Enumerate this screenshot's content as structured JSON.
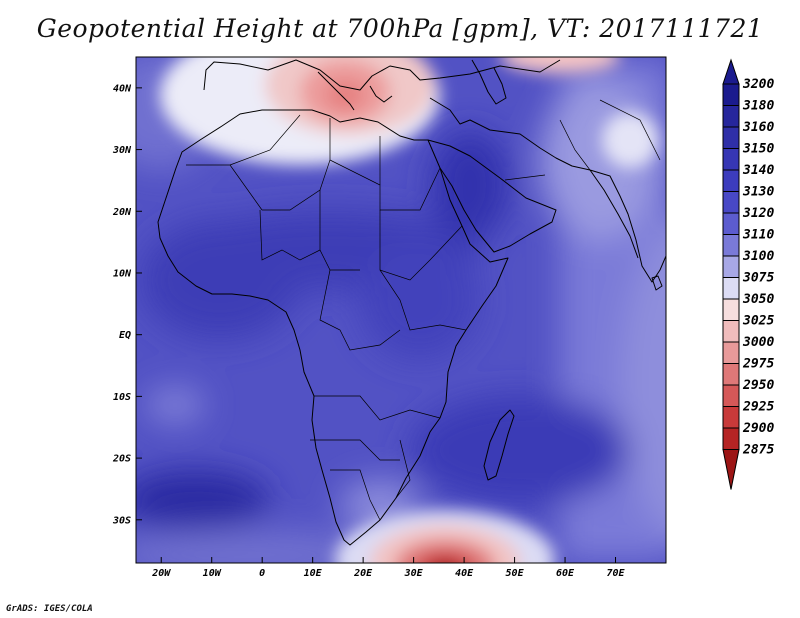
{
  "title": "Geopotential Height at 700hPa [gpm], VT: 2017111721",
  "footer": "GrADS: IGES/COLA",
  "map": {
    "region": "Africa",
    "lon_range": [
      -25,
      80
    ],
    "lat_range": [
      -37,
      45
    ],
    "x_tick_labels": [
      "20W",
      "10W",
      "0",
      "10E",
      "20E",
      "30E",
      "40E",
      "50E",
      "60E",
      "70E"
    ],
    "y_tick_labels": [
      "40N",
      "30N",
      "20N",
      "10N",
      "EQ",
      "10S",
      "20S",
      "30S"
    ]
  },
  "legend": {
    "levels": [
      "3200",
      "3180",
      "3160",
      "3150",
      "3140",
      "3130",
      "3120",
      "3110",
      "3100",
      "3075",
      "3050",
      "3025",
      "3000",
      "2975",
      "2950",
      "2925",
      "2900",
      "2875"
    ],
    "colors": [
      "#1b1b8e",
      "#26269c",
      "#2f2fa8",
      "#3636b4",
      "#3c3cbd",
      "#4848c6",
      "#5c5ccf",
      "#7a7ad8",
      "#a8a8e6",
      "#dcdcf4",
      "#f6dede",
      "#f0bcbc",
      "#e89a9a",
      "#df7878",
      "#d55858",
      "#c83a3a",
      "#b52424",
      "#9c1515"
    ]
  },
  "chart_data": {
    "type": "heatmap",
    "variable": "Geopotential Height at 700hPa [gpm]",
    "valid_time": "2017111721",
    "color_levels": [
      2875,
      2900,
      2925,
      2950,
      2975,
      3000,
      3025,
      3050,
      3075,
      3100,
      3110,
      3120,
      3130,
      3140,
      3150,
      3160,
      3180,
      3200
    ],
    "features": [
      {
        "feature": "low",
        "location": "Southern Ocean south of Madagascar",
        "lon": 40,
        "lat": -36,
        "value_approx": 2875
      },
      {
        "feature": "low",
        "location": "Central Mediterranean / Italy",
        "lon": 18,
        "lat": 41,
        "value_approx": 3025
      },
      {
        "feature": "high",
        "location": "South Atlantic",
        "lon": -13,
        "lat": -27,
        "value_approx": 3180
      },
      {
        "feature": "high",
        "location": "Arabian Peninsula / Red Sea",
        "lon": 42,
        "lat": 23,
        "value_approx": 3150
      }
    ]
  }
}
